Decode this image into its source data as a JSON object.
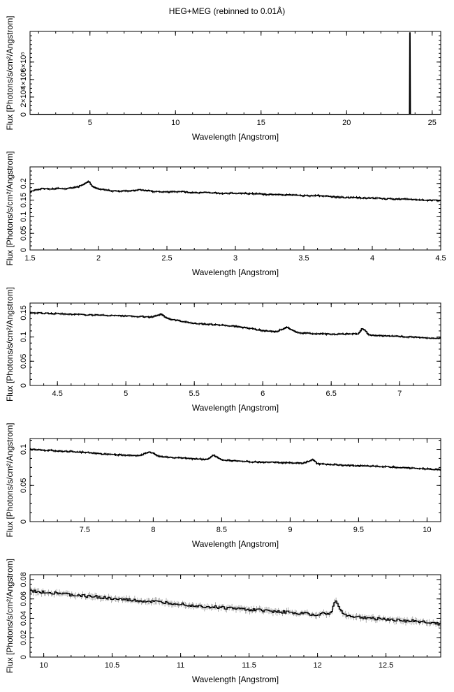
{
  "title": "HEG+MEG (rebinned to 0.01Å)",
  "chart_data": [
    {
      "type": "line",
      "xlabel": "Wavelength [Angstrom]",
      "ylabel": "Flux [Photons/s/cm²/Angstrom]",
      "xlim": [
        1.5,
        25.5
      ],
      "ylim": [
        0,
        950000
      ],
      "xticks": [
        5,
        10,
        15,
        20,
        25
      ],
      "xtick_labels": [
        "5",
        "10",
        "15",
        "20",
        "25"
      ],
      "yticks": [
        0,
        200000,
        400000,
        600000
      ],
      "ytick_labels": [
        "0",
        "2×10⁵",
        "4×10⁵",
        "6×10⁵"
      ],
      "series": [
        {
          "x": [
            1.5,
            23.68,
            23.7,
            23.72,
            25.5
          ],
          "y": [
            0,
            0,
            940000,
            0,
            0
          ]
        }
      ]
    },
    {
      "type": "line",
      "xlabel": "Wavelength [Angstrom]",
      "ylabel": "Flux [Photons/s/cm²/Angstrom]",
      "xlim": [
        1.5,
        4.5
      ],
      "ylim": [
        0,
        0.25
      ],
      "xticks": [
        1.5,
        2,
        2.5,
        3,
        3.5,
        4,
        4.5
      ],
      "xtick_labels": [
        "1.5",
        "2",
        "2.5",
        "3",
        "3.5",
        "4",
        "4.5"
      ],
      "yticks": [
        0,
        0.05,
        0.1,
        0.15,
        0.2
      ],
      "ytick_labels": [
        "0",
        "0.05",
        "0.1",
        "0.15",
        "0.2"
      ],
      "series": [
        {
          "x": [
            1.5,
            1.55,
            1.6,
            1.65,
            1.7,
            1.75,
            1.8,
            1.85,
            1.9,
            1.93,
            1.96,
            2.0,
            2.1,
            2.2,
            2.3,
            2.4,
            2.5,
            2.6,
            2.7,
            2.8,
            2.9,
            3.0,
            3.1,
            3.2,
            3.3,
            3.4,
            3.5,
            3.6,
            3.7,
            3.8,
            3.9,
            4.0,
            4.1,
            4.2,
            4.3,
            4.4,
            4.5
          ],
          "y": [
            0.175,
            0.182,
            0.185,
            0.183,
            0.186,
            0.184,
            0.187,
            0.19,
            0.198,
            0.208,
            0.19,
            0.184,
            0.178,
            0.177,
            0.181,
            0.176,
            0.174,
            0.176,
            0.172,
            0.173,
            0.17,
            0.171,
            0.17,
            0.168,
            0.166,
            0.166,
            0.163,
            0.164,
            0.16,
            0.158,
            0.157,
            0.156,
            0.154,
            0.153,
            0.152,
            0.15,
            0.149
          ]
        }
      ]
    },
    {
      "type": "line",
      "xlabel": "Wavelength [Angstrom]",
      "ylabel": "Flux [Photons/s/cm²/Angstrom]",
      "xlim": [
        4.3,
        7.3
      ],
      "ylim": [
        0,
        0.17
      ],
      "xticks": [
        4.5,
        5,
        5.5,
        6,
        6.5,
        7
      ],
      "xtick_labels": [
        "4.5",
        "5",
        "5.5",
        "6",
        "6.5",
        "7"
      ],
      "yticks": [
        0,
        0.05,
        0.1,
        0.15
      ],
      "ytick_labels": [
        "0",
        "0.05",
        "0.1",
        "0.15"
      ],
      "series": [
        {
          "x": [
            4.3,
            4.4,
            4.5,
            4.6,
            4.7,
            4.8,
            4.9,
            5.0,
            5.1,
            5.2,
            5.26,
            5.3,
            5.4,
            5.5,
            5.6,
            5.7,
            5.8,
            5.9,
            6.0,
            6.1,
            6.18,
            6.25,
            6.3,
            6.4,
            6.5,
            6.6,
            6.7,
            6.73,
            6.78,
            6.9,
            7.0,
            7.1,
            7.2,
            7.3
          ],
          "y": [
            0.15,
            0.149,
            0.148,
            0.147,
            0.146,
            0.145,
            0.144,
            0.143,
            0.142,
            0.141,
            0.148,
            0.138,
            0.133,
            0.128,
            0.126,
            0.125,
            0.122,
            0.118,
            0.113,
            0.111,
            0.12,
            0.109,
            0.108,
            0.107,
            0.106,
            0.106,
            0.107,
            0.118,
            0.104,
            0.102,
            0.101,
            0.1,
            0.098,
            0.097
          ]
        }
      ]
    },
    {
      "type": "line",
      "xlabel": "Wavelength [Angstrom]",
      "ylabel": "Flux [Photons/s/cm²/Angstrom]",
      "xlim": [
        7.1,
        10.1
      ],
      "ylim": [
        0,
        0.115
      ],
      "xticks": [
        7.5,
        8,
        8.5,
        9,
        9.5,
        10
      ],
      "xtick_labels": [
        "7.5",
        "8",
        "8.5",
        "9",
        "9.5",
        "10"
      ],
      "yticks": [
        0,
        0.05,
        0.1
      ],
      "ytick_labels": [
        "0",
        "0.05",
        "0.1"
      ],
      "series": [
        {
          "x": [
            7.1,
            7.2,
            7.3,
            7.4,
            7.5,
            7.6,
            7.7,
            7.8,
            7.9,
            7.97,
            8.05,
            8.1,
            8.2,
            8.3,
            8.4,
            8.44,
            8.5,
            8.6,
            8.7,
            8.8,
            8.9,
            9.0,
            9.1,
            9.17,
            9.2,
            9.3,
            9.4,
            9.5,
            9.6,
            9.7,
            9.8,
            9.9,
            10.0,
            10.1
          ],
          "y": [
            0.1,
            0.099,
            0.098,
            0.097,
            0.096,
            0.094,
            0.093,
            0.092,
            0.091,
            0.097,
            0.09,
            0.089,
            0.088,
            0.087,
            0.086,
            0.092,
            0.085,
            0.084,
            0.083,
            0.082,
            0.082,
            0.081,
            0.081,
            0.086,
            0.08,
            0.079,
            0.078,
            0.077,
            0.077,
            0.076,
            0.075,
            0.074,
            0.073,
            0.072
          ]
        }
      ]
    },
    {
      "type": "line",
      "xlabel": "Wavelength [Angstrom]",
      "ylabel": "Flux [Photons/s/cm²/Angstrom]",
      "xlim": [
        9.9,
        12.9
      ],
      "ylim": [
        0,
        0.085
      ],
      "xticks": [
        10,
        10.5,
        11,
        11.5,
        12,
        12.5
      ],
      "xtick_labels": [
        "10",
        "10.5",
        "11",
        "11.5",
        "12",
        "12.5"
      ],
      "yticks": [
        0,
        0.02,
        0.04,
        0.06,
        0.08
      ],
      "ytick_labels": [
        "0",
        "0.02",
        "0.04",
        "0.06",
        "0.08"
      ],
      "series": [
        {
          "x": [
            9.9,
            10.0,
            10.1,
            10.2,
            10.3,
            10.4,
            10.5,
            10.6,
            10.7,
            10.8,
            10.9,
            11.0,
            11.1,
            11.2,
            11.3,
            11.4,
            11.5,
            11.6,
            11.7,
            11.8,
            11.9,
            12.0,
            12.1,
            12.13,
            12.2,
            12.3,
            12.4,
            12.5,
            12.6,
            12.7,
            12.8,
            12.9
          ],
          "y": [
            0.068,
            0.067,
            0.066,
            0.064,
            0.063,
            0.062,
            0.06,
            0.059,
            0.058,
            0.057,
            0.056,
            0.055,
            0.053,
            0.052,
            0.051,
            0.05,
            0.049,
            0.048,
            0.047,
            0.046,
            0.045,
            0.044,
            0.045,
            0.058,
            0.043,
            0.041,
            0.04,
            0.039,
            0.038,
            0.037,
            0.036,
            0.034
          ]
        }
      ]
    }
  ]
}
